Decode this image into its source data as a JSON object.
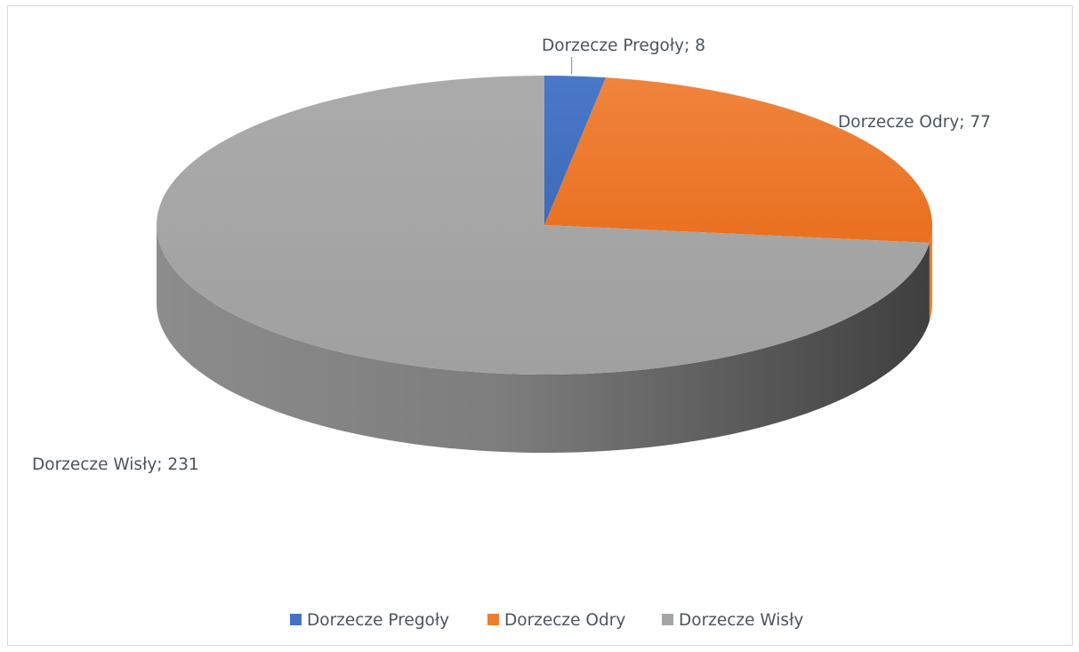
{
  "chart_data": {
    "type": "pie",
    "style": "3d",
    "title": "",
    "categories": [
      "Dorzecze Pregoły",
      "Dorzecze Odry",
      "Dorzecze Wisły"
    ],
    "values": [
      8,
      77,
      231
    ],
    "colors": [
      "#4472c4",
      "#ed7d31",
      "#a5a5a5"
    ],
    "data_labels": [
      "Dorzecze Pregoły; 8",
      "Dorzecze Odry; 77",
      "Dorzecze Wisły; 231"
    ],
    "legend": {
      "position": "bottom",
      "entries": [
        "Dorzecze Pregoły",
        "Dorzecze Odry",
        "Dorzecze Wisły"
      ]
    }
  }
}
